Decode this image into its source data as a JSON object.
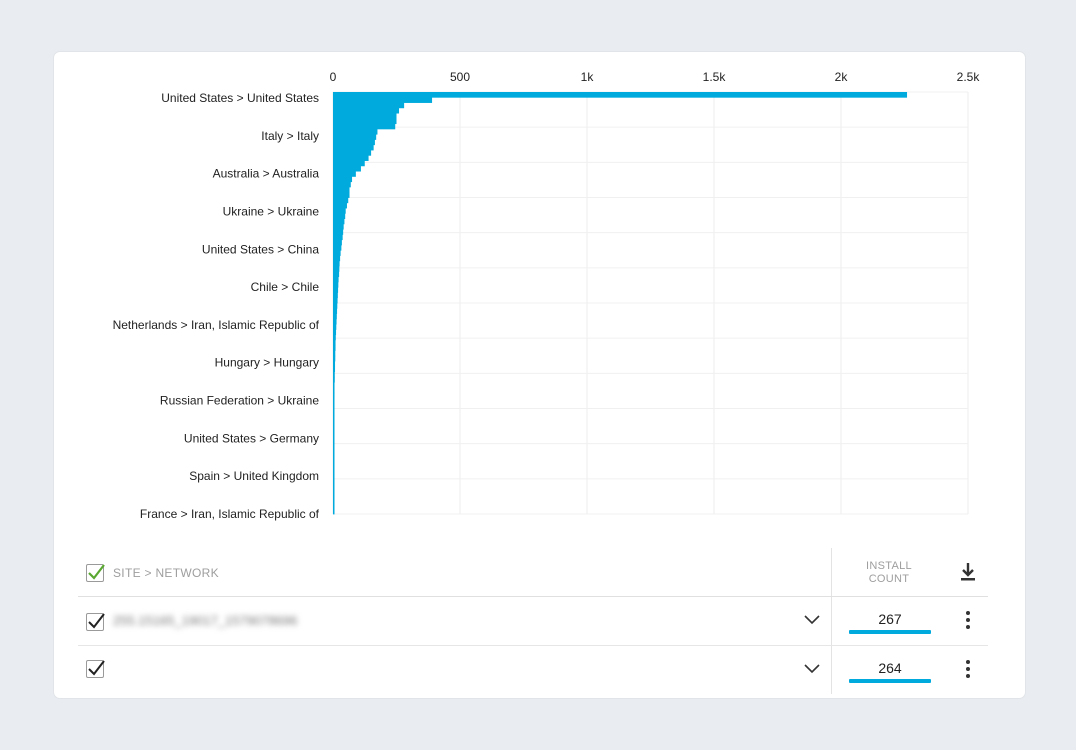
{
  "chart_data": {
    "type": "bar",
    "orientation": "horizontal",
    "x_ticks": [
      "0",
      "500",
      "1k",
      "1.5k",
      "2k",
      "2.5k"
    ],
    "x_tick_values": [
      0,
      500,
      1000,
      1500,
      2000,
      2500
    ],
    "xlim": [
      0,
      2500
    ],
    "grid": true,
    "color": "#00aadc",
    "labeled_categories": [
      "United States > United States",
      "Italy > Italy",
      "Australia > Australia",
      "Ukraine > Ukraine",
      "United States > China",
      "Chile > Chile",
      "Netherlands > Iran, Islamic Republic of",
      "Hungary > Hungary",
      "Russian Federation > Ukraine",
      "United States > Germany",
      "Spain > United Kingdom",
      "France > Iran, Islamic Republic of"
    ],
    "values": [
      2260,
      390,
      280,
      260,
      250,
      250,
      245,
      175,
      170,
      165,
      160,
      150,
      140,
      125,
      110,
      90,
      75,
      70,
      65,
      65,
      60,
      55,
      50,
      48,
      45,
      42,
      40,
      38,
      35,
      33,
      30,
      28,
      26,
      25,
      24,
      22,
      21,
      20,
      19,
      18,
      17,
      16,
      15,
      14,
      13,
      12,
      11,
      10,
      10,
      9,
      9,
      8,
      8,
      7,
      7,
      6,
      6,
      6,
      5,
      5,
      5,
      4,
      4,
      4,
      3,
      3,
      3,
      3,
      2,
      2,
      2,
      2,
      2,
      1,
      1,
      1,
      1,
      1,
      1,
      1
    ]
  },
  "table": {
    "header": {
      "column_label": "SITE > NETWORK",
      "count_label_1": "INSTALL",
      "count_label_2": "COUNT",
      "download_icon": "download-icon"
    },
    "rows": [
      {
        "label": "255.15165_19017_1579078696",
        "count": "267",
        "checked": true
      },
      {
        "label": "",
        "count": "264",
        "checked": true
      }
    ]
  },
  "colors": {
    "accent": "#00aadc",
    "header_check": "#5aa832",
    "background": "#e9ecf0"
  }
}
